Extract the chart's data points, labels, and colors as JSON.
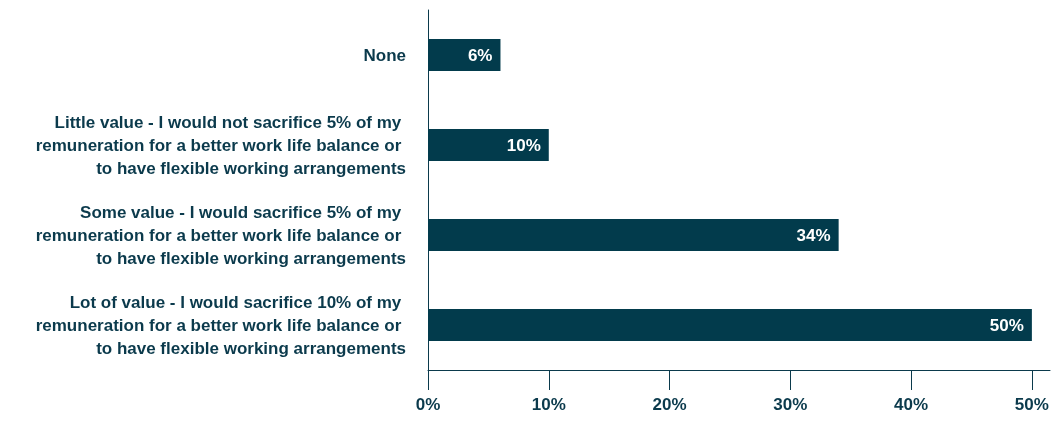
{
  "chart_data": {
    "type": "bar",
    "orientation": "horizontal",
    "categories": [
      "None",
      "Little value - I would not sacrifice 5% of my remuneration for a better work life balance or to have flexible working arrangements",
      "Some value - I would sacrifice 5% of my remuneration for a better work life balance or to have flexible working arrangements",
      "Lot of value - I would sacrifice 10% of my remuneration for a better work life balance or to have flexible working arrangements"
    ],
    "values": [
      6,
      10,
      34,
      50
    ],
    "value_labels": [
      "6%",
      "10%",
      "34%",
      "50%"
    ],
    "color": "#023b4c",
    "xlim": [
      0,
      51.5
    ],
    "xticks": [
      {
        "value": 0,
        "label": "0%"
      },
      {
        "value": 10,
        "label": "10%"
      },
      {
        "value": 20,
        "label": "20%"
      },
      {
        "value": 30,
        "label": "30%"
      },
      {
        "value": 40,
        "label": "40%"
      },
      {
        "value": 50,
        "label": "50%"
      }
    ],
    "grid": false
  }
}
